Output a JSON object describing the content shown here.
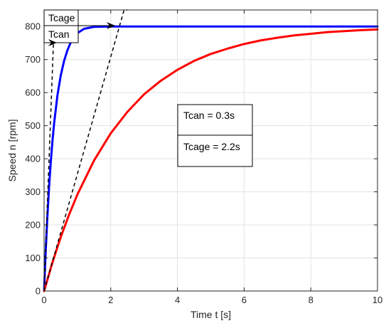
{
  "chart_data": {
    "type": "line",
    "xlabel": "Time t [s]",
    "ylabel": "Speed n [rpm]",
    "xlim": [
      0,
      10
    ],
    "ylim": [
      0,
      850
    ],
    "x_ticks": [
      0,
      2,
      4,
      6,
      8,
      10
    ],
    "y_ticks": [
      0,
      100,
      200,
      300,
      400,
      500,
      600,
      700,
      800
    ],
    "grid": true,
    "series": [
      {
        "color": "#0000ff",
        "x": [
          0,
          0.05,
          0.1,
          0.15,
          0.2,
          0.25,
          0.3,
          0.4,
          0.5,
          0.6,
          0.7,
          0.8,
          0.9,
          1.0,
          1.2,
          1.5,
          2,
          3,
          4,
          6,
          8,
          10
        ],
        "y": [
          0,
          123,
          227,
          315,
          389,
          452,
          506,
          591,
          652,
          696,
          728,
          752,
          768,
          780,
          793,
          799,
          800,
          800,
          800,
          800,
          800,
          800
        ]
      },
      {
        "color": "#ff0000",
        "x": [
          0,
          0.25,
          0.5,
          0.75,
          1,
          1.5,
          2,
          2.5,
          3,
          3.5,
          4,
          4.5,
          5,
          5.5,
          6,
          6.5,
          7,
          7.5,
          8,
          8.5,
          9,
          9.5,
          10
        ],
        "y": [
          0,
          86,
          163,
          231,
          292,
          395,
          477,
          542,
          595,
          636,
          669,
          696,
          717,
          733,
          747,
          758,
          766,
          773,
          778,
          783,
          786,
          789,
          791
        ]
      }
    ],
    "tangents": [
      {
        "from": [
          0,
          0
        ],
        "to": [
          0.3,
          800
        ],
        "end": [
          0.5,
          800
        ]
      },
      {
        "from": [
          0,
          0
        ],
        "to": [
          2.4,
          850
        ],
        "end": [
          2.5,
          850
        ]
      }
    ],
    "annotations": {
      "tcage_label": "Tcage",
      "tcan_label": "Tcan",
      "info_tcan": "Tcan = 0.3s",
      "info_tcage": "Tcage = 2.2s"
    }
  }
}
